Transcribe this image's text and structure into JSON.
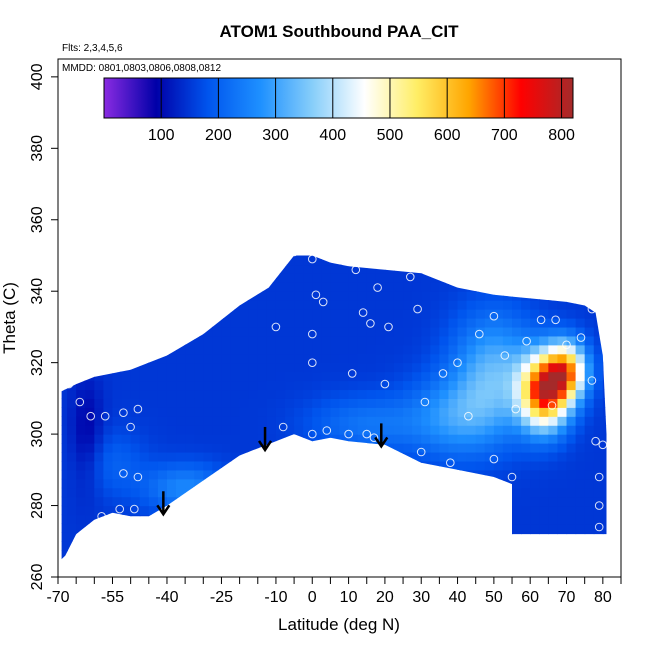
{
  "chart_data": {
    "type": "heatmap",
    "title": "ATOM1 Southbound PAA_CIT",
    "note_top": "Flts: 2,3,4,5,6",
    "note_mmdd": "MMDD: 0801,0803,0806,0808,0812",
    "xlabel": "Latitude (deg N)",
    "ylabel": "Theta (C)",
    "xlim": [
      -70,
      85
    ],
    "ylim": [
      260,
      405
    ],
    "x_ticks": [
      -70,
      -55,
      -40,
      -25,
      -10,
      0,
      10,
      20,
      30,
      40,
      50,
      60,
      70,
      80
    ],
    "x_tick_labels": [
      "-70",
      "-55",
      "-40",
      "-25",
      "-10",
      "0",
      "10",
      "20",
      "30",
      "40",
      "50",
      "60",
      "70",
      "80"
    ],
    "x_minor_ticks": [
      -65,
      -60,
      -50,
      -45,
      -35,
      -30,
      -20,
      -15,
      -5,
      5,
      15,
      25,
      35,
      45,
      55,
      65,
      75,
      85
    ],
    "y_ticks": [
      260,
      280,
      300,
      320,
      340,
      360,
      380,
      400
    ],
    "y_tick_labels": [
      "260",
      "280",
      "300",
      "320",
      "340",
      "360",
      "380",
      "400"
    ],
    "colorbar": {
      "range": [
        0,
        820
      ],
      "ticks": [
        100,
        200,
        300,
        400,
        500,
        600,
        700,
        800
      ],
      "tick_labels": [
        "100",
        "200",
        "300",
        "400",
        "500",
        "600",
        "700",
        "800"
      ],
      "colors": [
        "#8a2be2",
        "#0000a8",
        "#0055ee",
        "#1e90ff",
        "#87cefa",
        "#ffffff",
        "#ffee66",
        "#ffa500",
        "#ff0000",
        "#a52a2a"
      ]
    },
    "bottom_boundary": [
      [
        -69,
        265
      ],
      [
        -68,
        266
      ],
      [
        -65,
        272
      ],
      [
        -60,
        276
      ],
      [
        -55,
        278
      ],
      [
        -50,
        277
      ],
      [
        -45,
        277
      ],
      [
        -40,
        280
      ],
      [
        -30,
        287
      ],
      [
        -20,
        294
      ],
      [
        -10,
        298
      ],
      [
        -5,
        300
      ],
      [
        0,
        298
      ],
      [
        5,
        299
      ],
      [
        10,
        298
      ],
      [
        20,
        297
      ],
      [
        30,
        292
      ],
      [
        40,
        290
      ],
      [
        50,
        288
      ],
      [
        55,
        286
      ],
      [
        55,
        272
      ],
      [
        80,
        272
      ]
    ],
    "top_boundary": [
      [
        -69,
        312
      ],
      [
        -65,
        314
      ],
      [
        -60,
        316
      ],
      [
        -50,
        318
      ],
      [
        -40,
        322
      ],
      [
        -30,
        328
      ],
      [
        -20,
        336
      ],
      [
        -12,
        341
      ],
      [
        -5,
        350
      ],
      [
        0,
        350
      ],
      [
        5,
        348
      ],
      [
        10,
        347
      ],
      [
        20,
        346
      ],
      [
        30,
        345
      ],
      [
        40,
        341
      ],
      [
        50,
        339
      ],
      [
        60,
        338
      ],
      [
        70,
        337
      ],
      [
        75,
        336
      ],
      [
        78,
        334
      ],
      [
        80,
        322
      ],
      [
        81,
        300
      ],
      [
        81,
        272
      ]
    ],
    "field_features": [
      {
        "lat": 64,
        "theta": 312,
        "value": 720,
        "spread_lat": 6,
        "spread_theta": 9
      },
      {
        "lat": 70,
        "theta": 318,
        "value": 560,
        "spread_lat": 5,
        "spread_theta": 7
      },
      {
        "lat": 50,
        "theta": 318,
        "value": 320,
        "spread_lat": 10,
        "spread_theta": 14
      },
      {
        "lat": 40,
        "theta": 305,
        "value": 280,
        "spread_lat": 12,
        "spread_theta": 10
      },
      {
        "lat": 15,
        "theta": 303,
        "value": 230,
        "spread_lat": 14,
        "spread_theta": 7
      },
      {
        "lat": -35,
        "theta": 285,
        "value": 260,
        "spread_lat": 10,
        "spread_theta": 6
      },
      {
        "lat": -55,
        "theta": 292,
        "value": 200,
        "spread_lat": 8,
        "spread_theta": 8
      },
      {
        "lat": -62,
        "theta": 300,
        "value": 90,
        "spread_lat": 4,
        "spread_theta": 14
      }
    ],
    "background_value": 150,
    "observations": [
      [
        -67,
        314
      ],
      [
        -64,
        309
      ],
      [
        -61,
        305
      ],
      [
        -57,
        305
      ],
      [
        -52,
        306
      ],
      [
        -48,
        307
      ],
      [
        -50,
        302
      ],
      [
        -52,
        289
      ],
      [
        -48,
        288
      ],
      [
        -58,
        277
      ],
      [
        -53,
        279
      ],
      [
        -49,
        279
      ],
      [
        -8,
        302
      ],
      [
        -5,
        351
      ],
      [
        0,
        349
      ],
      [
        1,
        339
      ],
      [
        3,
        337
      ],
      [
        0,
        328
      ],
      [
        0,
        320
      ],
      [
        0,
        300
      ],
      [
        4,
        301
      ],
      [
        -10,
        330
      ],
      [
        11,
        317
      ],
      [
        12,
        346
      ],
      [
        14,
        334
      ],
      [
        16,
        331
      ],
      [
        18,
        341
      ],
      [
        20,
        314
      ],
      [
        21,
        330
      ],
      [
        10,
        300
      ],
      [
        15,
        300
      ],
      [
        17,
        299
      ],
      [
        27,
        344
      ],
      [
        29,
        335
      ],
      [
        31,
        309
      ],
      [
        30,
        295
      ],
      [
        36,
        317
      ],
      [
        38,
        292
      ],
      [
        40,
        320
      ],
      [
        43,
        305
      ],
      [
        46,
        328
      ],
      [
        50,
        333
      ],
      [
        50,
        293
      ],
      [
        53,
        322
      ],
      [
        55,
        288
      ],
      [
        56,
        307
      ],
      [
        59,
        326
      ],
      [
        63,
        332
      ],
      [
        66,
        308
      ],
      [
        67,
        332
      ],
      [
        70,
        325
      ],
      [
        74,
        327
      ],
      [
        77,
        335
      ],
      [
        78,
        298
      ],
      [
        79,
        288
      ],
      [
        79,
        280
      ],
      [
        79,
        274
      ],
      [
        80,
        297
      ],
      [
        77,
        315
      ]
    ],
    "arrows": [
      {
        "lat": -41,
        "theta": 284
      },
      {
        "lat": -13,
        "theta": 302
      },
      {
        "lat": 19,
        "theta": 303
      }
    ]
  }
}
